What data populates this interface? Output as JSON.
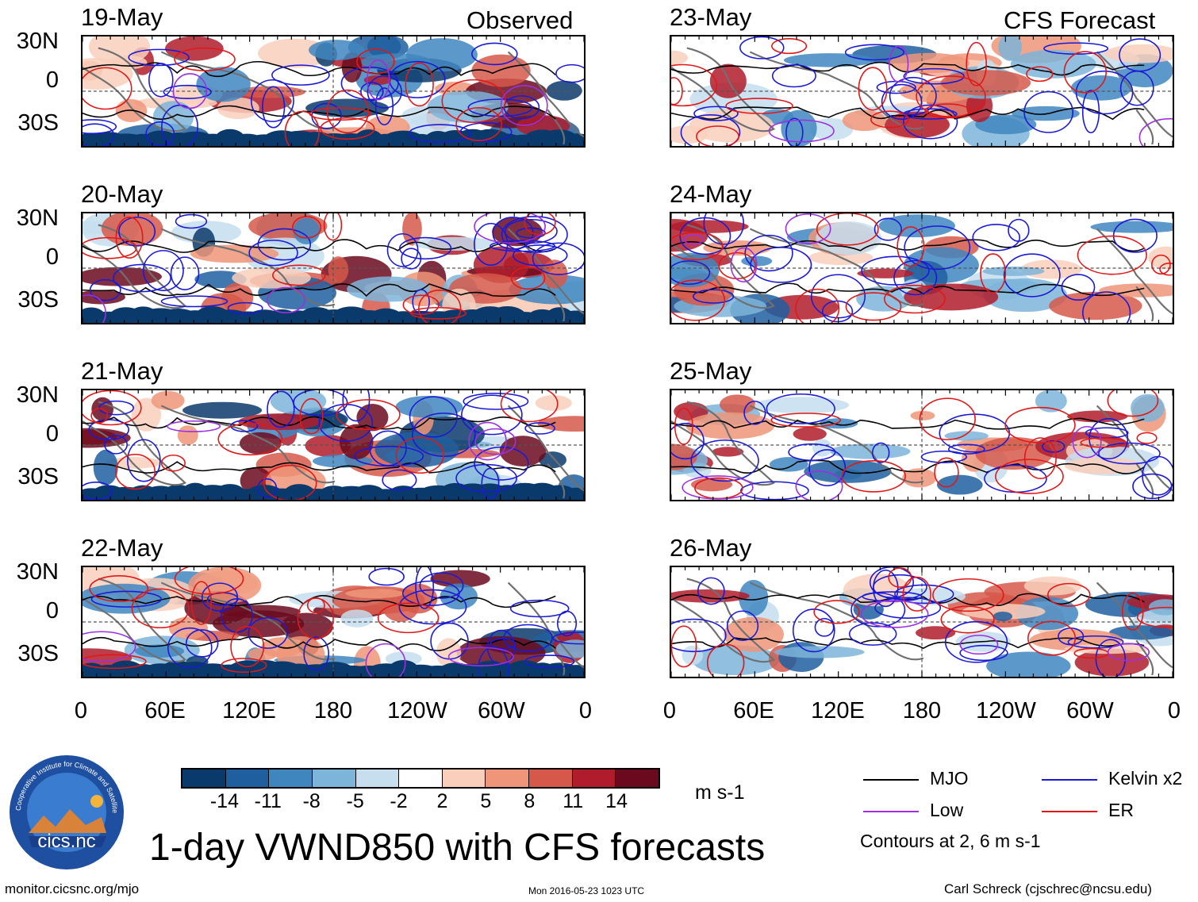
{
  "headers": {
    "left": "Observed",
    "right": "CFS Forecast"
  },
  "observed_dates": [
    "19-May",
    "20-May",
    "21-May",
    "22-May"
  ],
  "forecast_dates": [
    "23-May",
    "24-May",
    "25-May",
    "26-May"
  ],
  "lat_labels": [
    "30N",
    "0",
    "30S"
  ],
  "lon_labels": [
    "0",
    "60E",
    "120E",
    "180",
    "120W",
    "60W",
    "0"
  ],
  "colorbar": {
    "ticks": [
      "-14",
      "-11",
      "-8",
      "-5",
      "-2",
      "2",
      "5",
      "8",
      "11",
      "14"
    ],
    "colors": [
      "#0a3a6b",
      "#1f5fa0",
      "#3f86bf",
      "#7db4d9",
      "#c6deee",
      "#ffffff",
      "#f9cfbc",
      "#ef9579",
      "#d6584a",
      "#b01c2c",
      "#6b0a1e"
    ],
    "units": "m s-1"
  },
  "legend": {
    "items": [
      {
        "label": "MJO",
        "color": "#000000"
      },
      {
        "label": "Kelvin x2",
        "color": "#1a1ad6"
      },
      {
        "label": "Low",
        "color": "#9b30e0"
      },
      {
        "label": "ER",
        "color": "#e01818"
      }
    ],
    "note": "Contours at 2, 6 m s-1"
  },
  "title": "1-day VWND850 with CFS forecasts",
  "logo": {
    "text": "cics.nc",
    "ring_text": "Cooperative Institute for Climate and Satellites"
  },
  "footer": {
    "url": "monitor.cicsnc.org/mjo",
    "timestamp": "Mon 2016-05-23 1023 UTC",
    "author": "Carl Schreck (cjschrec@ncsu.edu)"
  },
  "chart_data": {
    "type": "heatmap",
    "variable": "850-hPa meridional wind anomaly (VWND850)",
    "units": "m s-1",
    "color_levels": [
      -14,
      -11,
      -8,
      -5,
      -2,
      2,
      5,
      8,
      11,
      14
    ],
    "x_axis": {
      "range": [
        0,
        360
      ],
      "ticks": [
        "0",
        "60E",
        "120E",
        "180",
        "120W",
        "60W",
        "0"
      ]
    },
    "y_axis": {
      "range": [
        -40,
        40
      ],
      "ticks": [
        "30N",
        "0",
        "30S"
      ]
    },
    "contours": {
      "levels": [
        2,
        6
      ],
      "series": [
        "MJO",
        "Kelvin x2",
        "Low",
        "ER"
      ]
    },
    "panels": [
      {
        "date": "19-May",
        "source": "Observed"
      },
      {
        "date": "20-May",
        "source": "Observed"
      },
      {
        "date": "21-May",
        "source": "Observed"
      },
      {
        "date": "22-May",
        "source": "Observed"
      },
      {
        "date": "23-May",
        "source": "CFS Forecast"
      },
      {
        "date": "24-May",
        "source": "CFS Forecast"
      },
      {
        "date": "25-May",
        "source": "CFS Forecast"
      },
      {
        "date": "26-May",
        "source": "CFS Forecast"
      }
    ]
  }
}
